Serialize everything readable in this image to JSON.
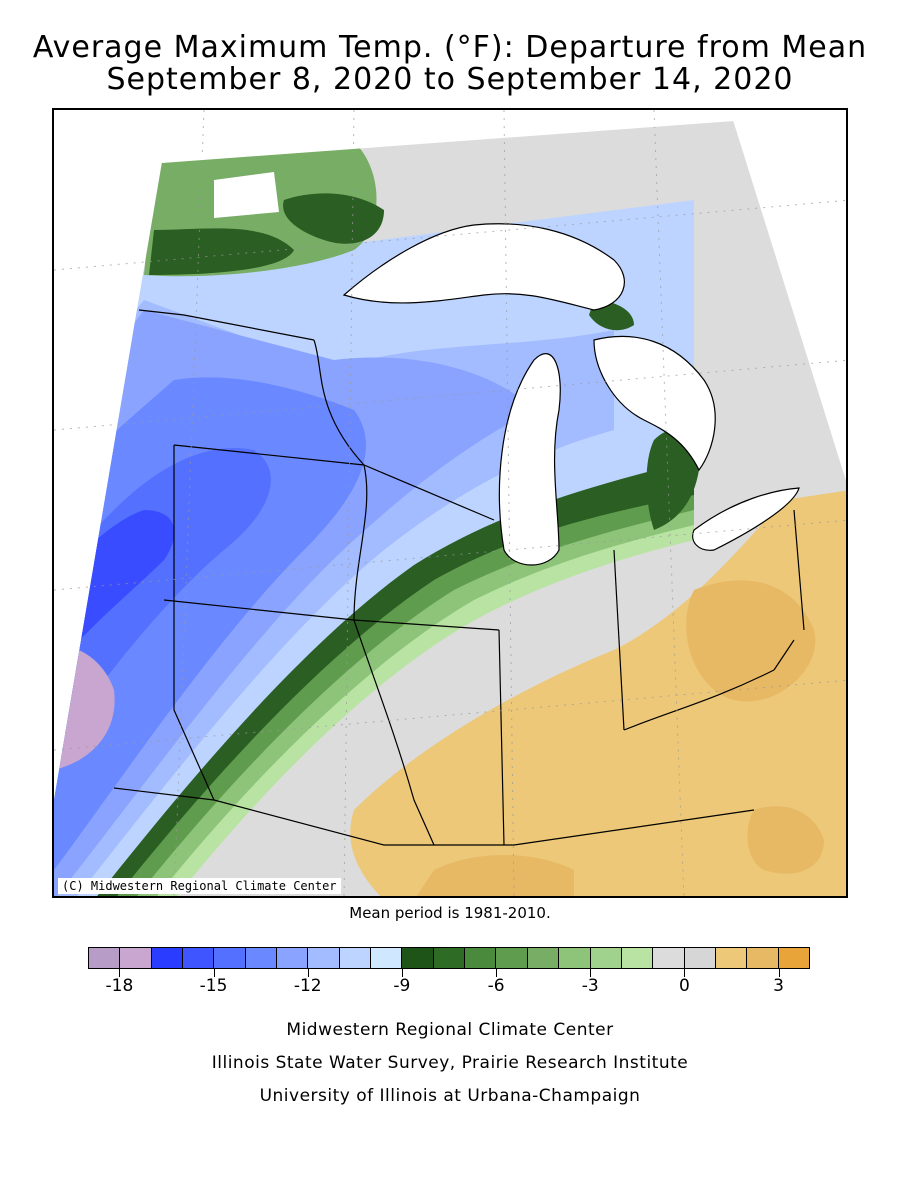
{
  "title": {
    "line1": "Average Maximum Temp. (°F): Departure from Mean",
    "line2": "September 8, 2020 to September 14, 2020"
  },
  "map": {
    "copyright": "(C) Midwestern Regional Climate Center",
    "region": "Midwest United States",
    "variable": "Average maximum temperature departure from mean",
    "units": "°F"
  },
  "mean_note": "Mean period is 1981-2010.",
  "legend": {
    "colors": [
      "#b89cc8",
      "#c8a6d0",
      "#2a3cff",
      "#3f55ff",
      "#5370ff",
      "#6a88ff",
      "#89a3ff",
      "#a3bbff",
      "#bcd4ff",
      "#cfe8ff",
      "#1e5418",
      "#2e6b25",
      "#4a8a3c",
      "#5f9c4d",
      "#77ad65",
      "#8dc47a",
      "#a0d28d",
      "#b9e3a2",
      "#dcdcdc",
      "#d6d6d6",
      "#ecc878",
      "#e8b964",
      "#e8a438"
    ],
    "tick_labels": [
      "-18",
      "-15",
      "-12",
      "-9",
      "-6",
      "-3",
      "0",
      "3"
    ]
  },
  "credits": {
    "line1": "Midwestern Regional Climate Center",
    "line2": "Illinois State Water Survey, Prairie Research Institute",
    "line3": "University of Illinois at Urbana-Champaign"
  },
  "colors": {
    "deep_purple": "#c8a6d0",
    "deep_blue": "#3a4cff",
    "blue": "#6a88ff",
    "light_blue": "#bcd4ff",
    "dark_green": "#2b5e22",
    "green": "#8dc47a",
    "light_green": "#b9e3a2",
    "gray": "#dcdcdc",
    "orange": "#e8b964",
    "lake": "#ffffff"
  }
}
